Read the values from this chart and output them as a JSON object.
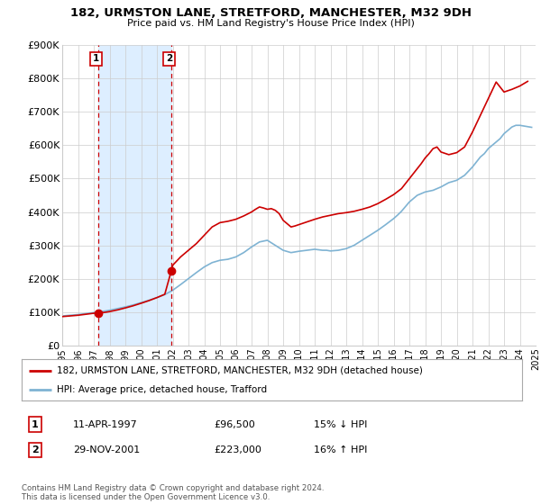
{
  "title": "182, URMSTON LANE, STRETFORD, MANCHESTER, M32 9DH",
  "subtitle": "Price paid vs. HM Land Registry's House Price Index (HPI)",
  "legend_line1": "182, URMSTON LANE, STRETFORD, MANCHESTER, M32 9DH (detached house)",
  "legend_line2": "HPI: Average price, detached house, Trafford",
  "sale1_date": "11-APR-1997",
  "sale1_price": 96500,
  "sale1_price_str": "£96,500",
  "sale1_hpi": "15% ↓ HPI",
  "sale1_year": 1997.28,
  "sale2_date": "29-NOV-2001",
  "sale2_price": 223000,
  "sale2_price_str": "£223,000",
  "sale2_hpi": "16% ↑ HPI",
  "sale2_year": 2001.91,
  "copyright": "Contains HM Land Registry data © Crown copyright and database right 2024.\nThis data is licensed under the Open Government Licence v3.0.",
  "xlabel_years": [
    1995,
    1996,
    1997,
    1998,
    1999,
    2000,
    2001,
    2002,
    2003,
    2004,
    2005,
    2006,
    2007,
    2008,
    2009,
    2010,
    2011,
    2012,
    2013,
    2014,
    2015,
    2016,
    2017,
    2018,
    2019,
    2020,
    2021,
    2022,
    2023,
    2024,
    2025
  ],
  "ylim": [
    0,
    900000
  ],
  "yticks": [
    0,
    100000,
    200000,
    300000,
    400000,
    500000,
    600000,
    700000,
    800000,
    900000
  ],
  "ytick_labels": [
    "£0",
    "£100K",
    "£200K",
    "£300K",
    "£400K",
    "£500K",
    "£600K",
    "£700K",
    "£800K",
    "£900K"
  ],
  "red_color": "#cc0000",
  "blue_color": "#7fb3d3",
  "shade_color": "#ddeeff",
  "grid_color": "#cccccc",
  "background_color": "#ffffff",
  "hpi_years": [
    1995.0,
    1995.25,
    1995.5,
    1995.75,
    1996.0,
    1996.25,
    1996.5,
    1996.75,
    1997.0,
    1997.25,
    1997.5,
    1997.75,
    1998.0,
    1998.25,
    1998.5,
    1998.75,
    1999.0,
    1999.25,
    1999.5,
    1999.75,
    2000.0,
    2000.25,
    2000.5,
    2000.75,
    2001.0,
    2001.25,
    2001.5,
    2001.75,
    2002.0,
    2002.25,
    2002.5,
    2002.75,
    2003.0,
    2003.25,
    2003.5,
    2003.75,
    2004.0,
    2004.25,
    2004.5,
    2004.75,
    2005.0,
    2005.25,
    2005.5,
    2005.75,
    2006.0,
    2006.25,
    2006.5,
    2006.75,
    2007.0,
    2007.25,
    2007.5,
    2007.75,
    2008.0,
    2008.25,
    2008.5,
    2008.75,
    2009.0,
    2009.25,
    2009.5,
    2009.75,
    2010.0,
    2010.25,
    2010.5,
    2010.75,
    2011.0,
    2011.25,
    2011.5,
    2011.75,
    2012.0,
    2012.25,
    2012.5,
    2012.75,
    2013.0,
    2013.25,
    2013.5,
    2013.75,
    2014.0,
    2014.25,
    2014.5,
    2014.75,
    2015.0,
    2015.25,
    2015.5,
    2015.75,
    2016.0,
    2016.25,
    2016.5,
    2016.75,
    2017.0,
    2017.25,
    2017.5,
    2017.75,
    2018.0,
    2018.25,
    2018.5,
    2018.75,
    2019.0,
    2019.25,
    2019.5,
    2019.75,
    2020.0,
    2020.25,
    2020.5,
    2020.75,
    2021.0,
    2021.25,
    2021.5,
    2021.75,
    2022.0,
    2022.25,
    2022.5,
    2022.75,
    2023.0,
    2023.25,
    2023.5,
    2023.75,
    2024.0,
    2024.25,
    2024.5,
    2024.75
  ],
  "hpi_values": [
    88000,
    89000,
    90000,
    91000,
    92000,
    93500,
    95000,
    96500,
    98000,
    99500,
    101000,
    103000,
    105000,
    107500,
    110000,
    112500,
    115000,
    118000,
    121000,
    124500,
    128000,
    131500,
    135000,
    139000,
    143000,
    147500,
    152000,
    158500,
    165000,
    173500,
    182000,
    191000,
    200000,
    209000,
    218000,
    226500,
    235000,
    241500,
    248000,
    251500,
    255000,
    256500,
    258000,
    261500,
    265000,
    271500,
    278000,
    286500,
    295000,
    302500,
    310000,
    312500,
    315000,
    307500,
    300000,
    292500,
    285000,
    281500,
    278000,
    280000,
    282000,
    283500,
    285000,
    286500,
    288000,
    286500,
    285000,
    285000,
    283000,
    284000,
    285000,
    287500,
    290000,
    295000,
    300000,
    307500,
    315000,
    322500,
    330000,
    337500,
    345000,
    353500,
    362000,
    371000,
    380000,
    390500,
    402000,
    416000,
    430000,
    440000,
    450000,
    455000,
    460000,
    462500,
    465000,
    470000,
    475000,
    481500,
    488000,
    491500,
    495000,
    502500,
    510000,
    522500,
    535000,
    550000,
    565000,
    575000,
    590000,
    600000,
    610000,
    620000,
    635000,
    645000,
    655000,
    660000,
    660000,
    658000,
    656000,
    654000
  ],
  "red_years": [
    1995.0,
    1995.25,
    1995.5,
    1995.75,
    1996.0,
    1996.25,
    1996.5,
    1996.75,
    1997.0,
    1997.28,
    1997.5,
    1997.75,
    1998.0,
    1998.5,
    1999.0,
    1999.5,
    2000.0,
    2000.5,
    2001.0,
    2001.5,
    2001.91,
    2002.0,
    2002.5,
    2003.0,
    2003.5,
    2004.0,
    2004.5,
    2005.0,
    2005.5,
    2006.0,
    2006.5,
    2007.0,
    2007.25,
    2007.5,
    2007.75,
    2008.0,
    2008.25,
    2008.5,
    2008.75,
    2009.0,
    2009.25,
    2009.5,
    2009.75,
    2010.0,
    2010.5,
    2011.0,
    2011.5,
    2012.0,
    2012.5,
    2013.0,
    2013.5,
    2014.0,
    2014.5,
    2015.0,
    2015.5,
    2016.0,
    2016.5,
    2017.0,
    2017.25,
    2017.5,
    2017.75,
    2018.0,
    2018.25,
    2018.5,
    2018.75,
    2019.0,
    2019.5,
    2020.0,
    2020.5,
    2021.0,
    2021.5,
    2022.0,
    2022.5,
    2023.0,
    2023.5,
    2024.0,
    2024.5
  ],
  "red_values": [
    86000,
    87000,
    88000,
    89000,
    90000,
    91500,
    93000,
    94500,
    96000,
    96500,
    97500,
    99000,
    101000,
    106000,
    112000,
    118500,
    126000,
    134000,
    143000,
    153000,
    223000,
    240000,
    265000,
    285000,
    305000,
    330000,
    355000,
    368000,
    372000,
    378000,
    388000,
    400000,
    408000,
    415000,
    412000,
    408000,
    410000,
    405000,
    395000,
    375000,
    365000,
    355000,
    358000,
    362000,
    370000,
    378000,
    385000,
    390000,
    395000,
    398000,
    402000,
    408000,
    415000,
    425000,
    438000,
    452000,
    470000,
    500000,
    515000,
    530000,
    545000,
    562000,
    575000,
    590000,
    595000,
    580000,
    572000,
    578000,
    595000,
    640000,
    690000,
    740000,
    790000,
    760000,
    768000,
    778000,
    792000
  ]
}
